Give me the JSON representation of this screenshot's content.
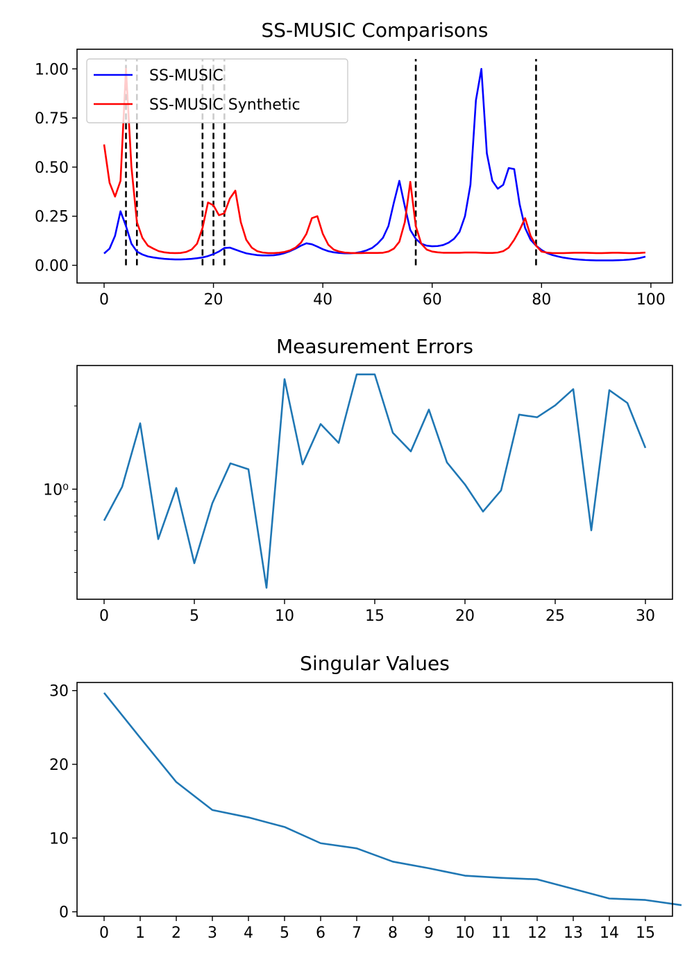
{
  "chart_data": [
    {
      "type": "line",
      "title": "SS-MUSIC Comparisons",
      "xlim": [
        -4.95,
        103.95
      ],
      "ylim": [
        -0.09,
        1.1
      ],
      "xticks": [
        0,
        20,
        40,
        60,
        80,
        100
      ],
      "yticks": [
        0.0,
        0.25,
        0.5,
        0.75,
        1.0
      ],
      "ytick_labels": [
        "0.00",
        "0.25",
        "0.50",
        "0.75",
        "1.00"
      ],
      "grid": false,
      "legend": "upper-left",
      "vlines": {
        "x": [
          4,
          6,
          18,
          20,
          22,
          57,
          79
        ],
        "ymin": 0,
        "ymax": 1.05,
        "color": "#000000",
        "style": "dashed"
      },
      "series": [
        {
          "name": "SS-MUSIC",
          "color": "#0000ff",
          "values": [
            0.06,
            0.085,
            0.15,
            0.275,
            0.2,
            0.11,
            0.07,
            0.055,
            0.045,
            0.04,
            0.036,
            0.033,
            0.031,
            0.03,
            0.03,
            0.031,
            0.033,
            0.036,
            0.04,
            0.047,
            0.057,
            0.07,
            0.088,
            0.09,
            0.08,
            0.07,
            0.061,
            0.056,
            0.052,
            0.05,
            0.05,
            0.051,
            0.055,
            0.062,
            0.072,
            0.085,
            0.1,
            0.112,
            0.107,
            0.095,
            0.082,
            0.072,
            0.066,
            0.063,
            0.061,
            0.061,
            0.063,
            0.068,
            0.076,
            0.088,
            0.11,
            0.14,
            0.2,
            0.32,
            0.43,
            0.3,
            0.18,
            0.135,
            0.11,
            0.1,
            0.097,
            0.098,
            0.103,
            0.115,
            0.135,
            0.17,
            0.25,
            0.41,
            0.84,
            1.0,
            0.57,
            0.43,
            0.39,
            0.41,
            0.495,
            0.49,
            0.31,
            0.19,
            0.13,
            0.1,
            0.078,
            0.062,
            0.052,
            0.045,
            0.039,
            0.035,
            0.031,
            0.029,
            0.027,
            0.026,
            0.025,
            0.025,
            0.025,
            0.025,
            0.026,
            0.027,
            0.029,
            0.032,
            0.037,
            0.044
          ]
        },
        {
          "name": "SS-MUSIC Synthetic",
          "color": "#ff0000",
          "values": [
            0.615,
            0.42,
            0.35,
            0.43,
            1.0,
            0.5,
            0.22,
            0.14,
            0.1,
            0.085,
            0.072,
            0.066,
            0.063,
            0.062,
            0.063,
            0.068,
            0.08,
            0.11,
            0.19,
            0.32,
            0.305,
            0.255,
            0.265,
            0.34,
            0.38,
            0.22,
            0.13,
            0.09,
            0.072,
            0.065,
            0.062,
            0.062,
            0.064,
            0.068,
            0.076,
            0.09,
            0.115,
            0.16,
            0.24,
            0.25,
            0.16,
            0.105,
            0.08,
            0.07,
            0.065,
            0.063,
            0.062,
            0.062,
            0.063,
            0.063,
            0.063,
            0.064,
            0.07,
            0.085,
            0.12,
            0.22,
            0.425,
            0.2,
            0.11,
            0.08,
            0.07,
            0.066,
            0.064,
            0.064,
            0.064,
            0.064,
            0.065,
            0.065,
            0.065,
            0.064,
            0.063,
            0.063,
            0.065,
            0.072,
            0.09,
            0.13,
            0.18,
            0.24,
            0.15,
            0.1,
            0.07,
            0.065,
            0.062,
            0.062,
            0.062,
            0.063,
            0.064,
            0.064,
            0.064,
            0.063,
            0.062,
            0.062,
            0.063,
            0.064,
            0.064,
            0.063,
            0.062,
            0.062,
            0.063,
            0.065
          ]
        }
      ]
    },
    {
      "type": "line",
      "title": "Measurement Errors",
      "yscale": "log",
      "xlim": [
        -1.5,
        31.5
      ],
      "ylim": [
        0.4,
        2.8
      ],
      "xticks": [
        0,
        5,
        10,
        15,
        20,
        25,
        30
      ],
      "yticks_major": [
        1.0
      ],
      "ytick_labels": [
        "10⁰"
      ],
      "yticks_minor": [
        0.5,
        0.6,
        0.7,
        0.8,
        0.9,
        2.0
      ],
      "grid": false,
      "series": [
        {
          "color": "#1f77b4",
          "values": [
            0.77,
            1.02,
            1.73,
            0.66,
            1.01,
            0.54,
            0.89,
            1.24,
            1.18,
            0.44,
            2.5,
            1.23,
            1.72,
            1.47,
            2.6,
            2.6,
            1.6,
            1.37,
            1.94,
            1.25,
            1.04,
            0.83,
            0.99,
            1.86,
            1.82,
            2.01,
            2.3,
            0.71,
            2.28,
            2.05,
            1.41
          ]
        }
      ]
    },
    {
      "type": "line",
      "title": "Singular Values",
      "xlim": [
        -0.75,
        15.75
      ],
      "ylim": [
        -0.6,
        31.1
      ],
      "xticks": [
        0,
        1,
        2,
        3,
        4,
        5,
        6,
        7,
        8,
        9,
        10,
        11,
        12,
        13,
        14,
        15
      ],
      "yticks": [
        0,
        10,
        20,
        30
      ],
      "grid": false,
      "series": [
        {
          "color": "#1f77b4",
          "values": [
            29.7,
            23.6,
            17.6,
            13.8,
            12.8,
            11.5,
            9.3,
            8.6,
            6.8,
            5.9,
            4.9,
            4.6,
            4.4,
            3.1,
            1.8,
            1.6,
            0.9
          ]
        }
      ]
    }
  ]
}
